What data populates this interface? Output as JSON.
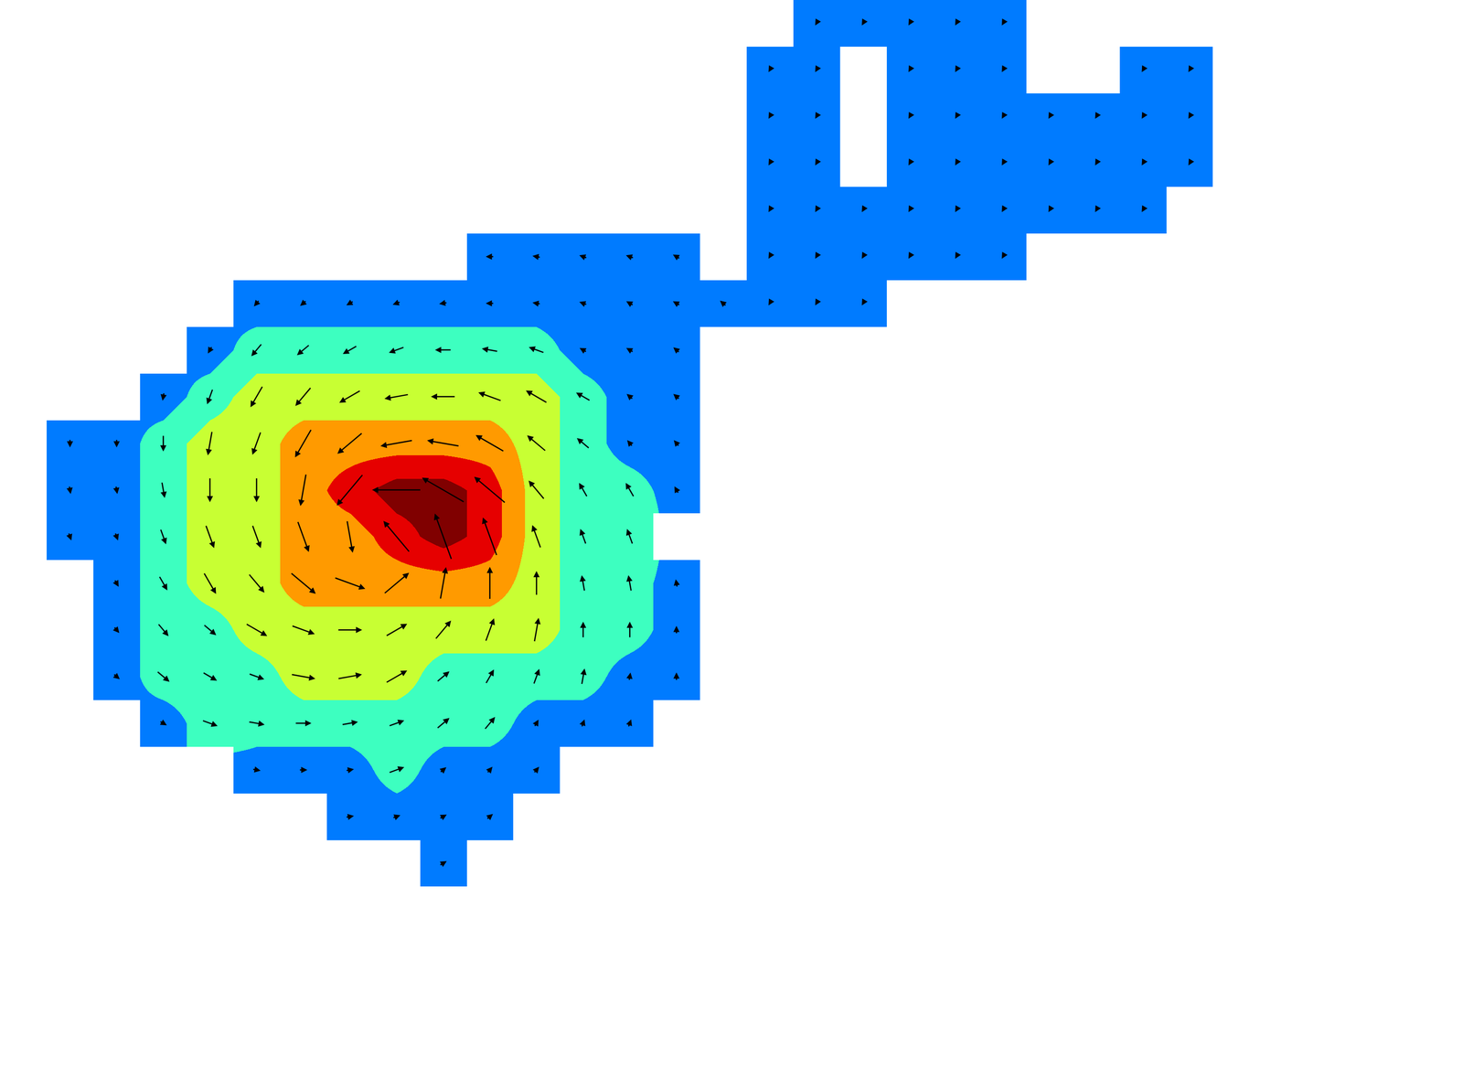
{
  "chart_data": {
    "type": "contour_quiver",
    "x": [
      1,
      2,
      3,
      4,
      5,
      6,
      7,
      8,
      9,
      10,
      11,
      12,
      13,
      14,
      15,
      16,
      17,
      18,
      19,
      20,
      21,
      22,
      23,
      24,
      25
    ],
    "y": [
      0,
      1,
      2,
      3,
      4,
      5,
      6,
      7,
      8,
      9,
      10,
      11,
      12,
      13,
      14,
      15,
      16,
      17,
      18
    ],
    "xlim": [
      -0.5,
      30.86
    ],
    "ylim": [
      22.86,
      -0.5
    ],
    "zlim": [
      0,
      35
    ],
    "contour_levels": [
      7.5,
      12.5,
      17.5,
      22.5,
      27.5
    ],
    "colors": [
      "#007bff",
      "#3dffc0",
      "#c8ff33",
      "#ff9a00",
      "#e60000",
      "#800000"
    ],
    "tick_labels": false,
    "speed": [
      [
        null,
        null,
        null,
        null,
        null,
        null,
        null,
        null,
        null,
        null,
        null,
        null,
        null,
        null,
        null,
        null,
        3,
        3,
        3,
        3,
        3,
        null,
        null,
        null,
        null
      ],
      [
        null,
        null,
        null,
        null,
        null,
        null,
        null,
        null,
        null,
        null,
        null,
        null,
        null,
        null,
        null,
        3,
        3,
        null,
        3,
        3,
        3,
        null,
        null,
        3,
        3
      ],
      [
        null,
        null,
        null,
        null,
        null,
        null,
        null,
        null,
        null,
        null,
        null,
        null,
        null,
        null,
        null,
        3,
        3,
        null,
        3,
        3,
        3,
        3,
        3,
        3,
        3
      ],
      [
        null,
        null,
        null,
        null,
        null,
        null,
        null,
        null,
        null,
        null,
        null,
        null,
        null,
        null,
        null,
        3,
        3,
        null,
        3,
        3,
        3,
        3,
        3,
        3,
        3
      ],
      [
        null,
        null,
        null,
        null,
        null,
        null,
        null,
        null,
        null,
        null,
        null,
        null,
        null,
        null,
        null,
        3,
        3,
        3,
        3,
        3,
        3,
        3,
        3,
        3,
        null
      ],
      [
        null,
        null,
        null,
        null,
        null,
        null,
        null,
        null,
        null,
        5,
        5,
        5,
        5,
        5,
        null,
        3,
        3,
        3,
        3,
        3,
        3,
        null,
        null,
        null,
        null
      ],
      [
        null,
        null,
        null,
        null,
        5,
        5,
        5,
        5,
        5,
        5,
        5,
        5,
        5,
        5,
        5,
        3,
        3,
        3,
        null,
        null,
        null,
        null,
        null,
        null,
        null
      ],
      [
        null,
        null,
        null,
        5,
        10,
        10,
        10,
        10,
        10,
        10,
        10,
        5,
        5,
        5,
        null,
        null,
        null,
        null,
        null,
        null,
        null,
        null,
        null,
        null,
        null
      ],
      [
        null,
        null,
        5,
        10,
        15,
        15,
        15,
        15,
        15,
        15,
        15,
        10,
        5,
        5,
        null,
        null,
        null,
        null,
        null,
        null,
        null,
        null,
        null,
        null,
        null
      ],
      [
        5,
        5,
        10,
        15,
        15,
        20,
        20,
        20,
        20,
        20,
        15,
        10,
        5,
        5,
        null,
        null,
        null,
        null,
        null,
        null,
        null,
        null,
        null,
        null,
        null
      ],
      [
        5,
        5,
        10,
        15,
        15,
        20,
        25,
        30,
        30,
        25,
        15,
        10,
        10,
        5,
        null,
        null,
        null,
        null,
        null,
        null,
        null,
        null,
        null,
        null,
        null
      ],
      [
        5,
        5,
        10,
        15,
        15,
        20,
        20,
        25,
        30,
        25,
        15,
        10,
        10,
        null,
        null,
        null,
        null,
        null,
        null,
        null,
        null,
        null,
        null,
        null,
        null
      ],
      [
        null,
        5,
        10,
        15,
        15,
        20,
        20,
        20,
        20,
        20,
        15,
        10,
        10,
        5,
        null,
        null,
        null,
        null,
        null,
        null,
        null,
        null,
        null,
        null,
        null
      ],
      [
        null,
        5,
        10,
        10,
        15,
        15,
        15,
        15,
        15,
        15,
        15,
        10,
        10,
        5,
        null,
        null,
        null,
        null,
        null,
        null,
        null,
        null,
        null,
        null,
        null
      ],
      [
        null,
        5,
        10,
        10,
        10,
        15,
        15,
        15,
        10,
        10,
        10,
        10,
        5,
        5,
        null,
        null,
        null,
        null,
        null,
        null,
        null,
        null,
        null,
        null,
        null
      ],
      [
        null,
        null,
        5,
        10,
        10,
        10,
        10,
        10,
        10,
        10,
        5,
        5,
        5,
        null,
        null,
        null,
        null,
        null,
        null,
        null,
        null,
        null,
        null,
        null,
        null
      ],
      [
        null,
        null,
        null,
        null,
        5,
        5,
        5,
        10,
        5,
        5,
        5,
        null,
        null,
        null,
        null,
        null,
        null,
        null,
        null,
        null,
        null,
        null,
        null,
        null,
        null
      ],
      [
        null,
        null,
        null,
        null,
        null,
        null,
        5,
        5,
        5,
        5,
        null,
        null,
        null,
        null,
        null,
        null,
        null,
        null,
        null,
        null,
        null,
        null,
        null,
        null,
        null
      ],
      [
        null,
        null,
        null,
        null,
        null,
        null,
        null,
        null,
        5,
        null,
        null,
        null,
        null,
        null,
        null,
        null,
        null,
        null,
        null,
        null,
        null,
        null,
        null,
        null,
        null
      ]
    ],
    "direction": [
      [
        null,
        null,
        null,
        null,
        null,
        null,
        null,
        null,
        null,
        null,
        null,
        null,
        null,
        null,
        null,
        null,
        240,
        240,
        240,
        240,
        240,
        null,
        null,
        null,
        null
      ],
      [
        null,
        null,
        null,
        null,
        null,
        null,
        null,
        null,
        null,
        null,
        null,
        null,
        null,
        null,
        null,
        240,
        240,
        null,
        240,
        240,
        240,
        null,
        null,
        240,
        240
      ],
      [
        null,
        null,
        null,
        null,
        null,
        null,
        null,
        null,
        null,
        null,
        null,
        null,
        null,
        null,
        null,
        240,
        240,
        null,
        240,
        240,
        240,
        240,
        240,
        240,
        240
      ],
      [
        null,
        null,
        null,
        null,
        null,
        null,
        null,
        null,
        null,
        null,
        null,
        null,
        null,
        null,
        null,
        240,
        240,
        null,
        240,
        240,
        240,
        240,
        240,
        240,
        240
      ],
      [
        null,
        null,
        null,
        null,
        null,
        null,
        null,
        null,
        null,
        null,
        null,
        null,
        null,
        null,
        null,
        240,
        240,
        240,
        240,
        240,
        240,
        240,
        240,
        240,
        null
      ],
      [
        null,
        null,
        null,
        null,
        null,
        null,
        null,
        null,
        null,
        180,
        170,
        160,
        160,
        150,
        null,
        240,
        240,
        240,
        240,
        240,
        240,
        null,
        null,
        null,
        null
      ],
      [
        null,
        null,
        null,
        null,
        230,
        220,
        210,
        200,
        190,
        180,
        170,
        160,
        150,
        150,
        140,
        240,
        240,
        240,
        null,
        null,
        null,
        null,
        null,
        null,
        null
      ],
      [
        null,
        null,
        null,
        240,
        230,
        220,
        210,
        200,
        180,
        170,
        160,
        150,
        150,
        140,
        null,
        null,
        null,
        null,
        null,
        null,
        null,
        null,
        null,
        null,
        null
      ],
      [
        null,
        null,
        260,
        250,
        240,
        230,
        210,
        190,
        180,
        160,
        150,
        150,
        140,
        140,
        null,
        null,
        null,
        null,
        null,
        null,
        null,
        null,
        null,
        null,
        null
      ],
      [
        270,
        270,
        270,
        260,
        250,
        240,
        220,
        190,
        170,
        150,
        140,
        140,
        130,
        130,
        null,
        null,
        null,
        null,
        null,
        null,
        null,
        null,
        null,
        null,
        null
      ],
      [
        280,
        280,
        280,
        270,
        270,
        260,
        230,
        180,
        150,
        140,
        130,
        120,
        120,
        120,
        null,
        null,
        null,
        null,
        null,
        null,
        null,
        null,
        null,
        null,
        null
      ],
      [
        290,
        290,
        290,
        290,
        290,
        290,
        280,
        130,
        110,
        110,
        110,
        110,
        110,
        null,
        null,
        null,
        null,
        null,
        null,
        null,
        null,
        null,
        null,
        null,
        null
      ],
      [
        null,
        300,
        300,
        300,
        310,
        320,
        340,
        40,
        80,
        90,
        90,
        100,
        100,
        100,
        null,
        null,
        null,
        null,
        null,
        null,
        null,
        null,
        null,
        null,
        null
      ],
      [
        null,
        310,
        310,
        320,
        330,
        340,
        0,
        30,
        50,
        70,
        80,
        90,
        90,
        90,
        null,
        null,
        null,
        null,
        null,
        null,
        null,
        null,
        null,
        null,
        null
      ],
      [
        null,
        320,
        320,
        330,
        340,
        350,
        10,
        30,
        40,
        60,
        70,
        80,
        80,
        90,
        null,
        null,
        null,
        null,
        null,
        null,
        null,
        null,
        null,
        null,
        null
      ],
      [
        null,
        null,
        330,
        340,
        350,
        0,
        10,
        20,
        40,
        50,
        60,
        70,
        70,
        null,
        null,
        null,
        null,
        null,
        null,
        null,
        null,
        null,
        null,
        null,
        null
      ],
      [
        null,
        null,
        null,
        null,
        350,
        0,
        10,
        20,
        40,
        50,
        50,
        null,
        null,
        null,
        null,
        null,
        null,
        null,
        null,
        null,
        null,
        null,
        null,
        null,
        null
      ],
      [
        null,
        null,
        null,
        null,
        null,
        null,
        10,
        20,
        30,
        40,
        null,
        null,
        null,
        null,
        null,
        null,
        null,
        null,
        null,
        null,
        null,
        null,
        null,
        null,
        null
      ],
      [
        null,
        null,
        null,
        null,
        null,
        null,
        null,
        null,
        30,
        null,
        null,
        null,
        null,
        null,
        null,
        null,
        null,
        null,
        null,
        null,
        null,
        null,
        null,
        null,
        null
      ]
    ]
  }
}
